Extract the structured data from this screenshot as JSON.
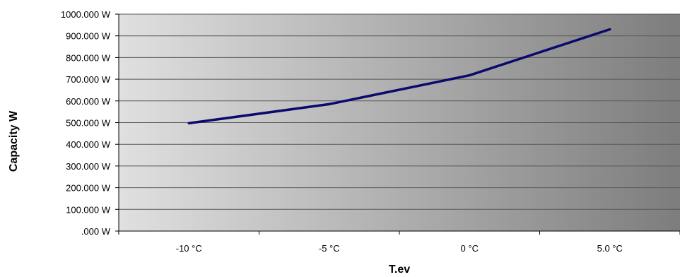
{
  "chart_data": {
    "type": "line",
    "title": "",
    "xlabel": "T.ev",
    "ylabel": "Capacity W",
    "categories": [
      "-10 °C",
      "-5 °C",
      "0 °C",
      "5.0 °C"
    ],
    "series": [
      {
        "values": [
          497,
          585,
          718,
          930
        ]
      }
    ],
    "ylim": [
      0,
      1000
    ],
    "yticks": [
      {
        "value": 0,
        "label": ".000 W"
      },
      {
        "value": 100,
        "label": "100.000 W"
      },
      {
        "value": 200,
        "label": "200.000 W"
      },
      {
        "value": 300,
        "label": "300.000 W"
      },
      {
        "value": 400,
        "label": "400.000 W"
      },
      {
        "value": 500,
        "label": "500.000 W"
      },
      {
        "value": 600,
        "label": "600.000 W"
      },
      {
        "value": 700,
        "label": "700.000 W"
      },
      {
        "value": 800,
        "label": "800.000 W"
      },
      {
        "value": 900,
        "label": "900.000 W"
      },
      {
        "value": 1000,
        "label": "1000.000 W"
      }
    ],
    "grid": true,
    "legend": "none",
    "colors": {
      "line": "#0a0a6e",
      "gradient_start": "#e0e0e0",
      "gradient_end": "#7d7d7d",
      "gridline": "#5a5a5a"
    }
  }
}
